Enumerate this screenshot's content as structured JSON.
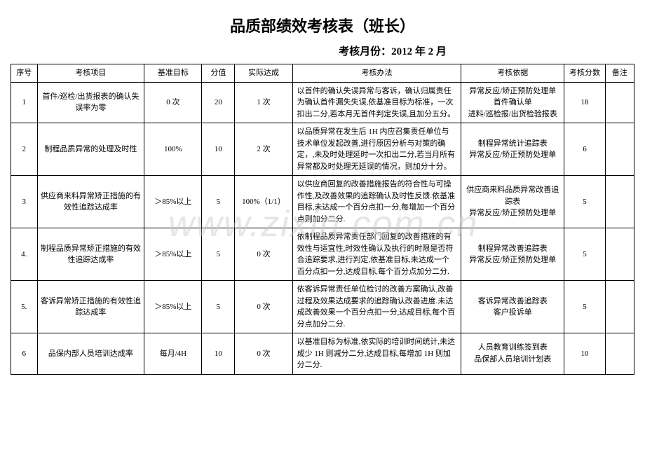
{
  "title": "品质部绩效考核表（班长）",
  "subtitle": "考核月份：2012 年 2 月",
  "watermark": "www.zixin.com.cn",
  "headers": {
    "seq": "序号",
    "item": "考核项目",
    "baseline": "基准目标",
    "score": "分值",
    "actual": "实际达成",
    "method": "考核办法",
    "basis": "考核依据",
    "finalscore": "考核分数",
    "note": "备注"
  },
  "rows": [
    {
      "seq": "1",
      "item": "首件/巡检/出货报表的确认失误率为零",
      "baseline": "0 次",
      "score": "20",
      "actual": "1 次",
      "method": "以首件的确认失误异常与客诉，确认归属责任为确认首件漏失失误,依基准目标为标准，一次扣出二分,若本月无首件判定失误,且加分五分。",
      "basis": "异常反应/矫正预防处理单\n首件确认单\n进料/巡检报/出货检验报表",
      "finalscore": "18",
      "note": ""
    },
    {
      "seq": "2",
      "item": "制程品质异常的处理及时性",
      "baseline": "100%",
      "score": "10",
      "actual": "2 次",
      "method": "以品质异常在发生后 1H 内应召集责任单位与技术单位发起改善,进行原因分析与对策的确定，,未及时处理延时一次扣出二分,若当月所有异常都及时处理无延误的情况，则加分十分。",
      "basis": "制程异常统计追踪表\n异常反应/矫正预防处理单",
      "finalscore": "6",
      "note": ""
    },
    {
      "seq": "3",
      "item": "供应商来料异常矫正措施的有效性追踪达成率",
      "baseline": "＞85%以上",
      "score": "5",
      "actual": "100%（1/1）",
      "method": "以供应商回复的改善措施报告的符合性与可操作性,及改善效果的追踪确认及时性反馈.依基准目标,未达成一个百分点扣一分,每增加一个百分点则加分二分.",
      "basis": "供应商来料品质异常改善追踪表\n异常反应/矫正预防处理单",
      "finalscore": "5",
      "note": ""
    },
    {
      "seq": "4.",
      "item": "制程品质异常矫正措施的有效性追踪达成率",
      "baseline": "＞85%以上",
      "score": "5",
      "actual": "0 次",
      "method": "依制程品质异常责任部门回复的改善措施的有效性与适宜性,时效性确认及执行的时限是否符合追踪要求,进行判定,依基准目标,未达成一个百分点扣一分,达成目标,每个百分点加分二分.",
      "basis": "制程异常改善追踪表\n异常反应/矫正预防处理单",
      "finalscore": "5",
      "note": ""
    },
    {
      "seq": "5.",
      "item": "客诉异常矫正措施的有效性追踪达成率",
      "baseline": "＞85%以上",
      "score": "5",
      "actual": "0 次",
      "method": "依客诉异常责任单位检讨的改善方案确认,改善过程及效果达成要求的追踪确认改善进度.未达成改善效果一个百分点扣一分,达成目标,每个百分点加分二分.",
      "basis": "客诉异常改善追踪表\n客户投诉单",
      "finalscore": "5",
      "note": ""
    },
    {
      "seq": "6",
      "item": "品保内部人员培训达成率",
      "baseline": "每月/4H",
      "score": "10",
      "actual": "0 次",
      "method": "以基准目标为标准,依实际的培训时间统计,未达成少 1H 则减分二分,达成目标,每增加 1H 则加分二分.",
      "basis": "人员教育训练签到表\n品保部人员培训计划表",
      "finalscore": "10",
      "note": ""
    }
  ]
}
